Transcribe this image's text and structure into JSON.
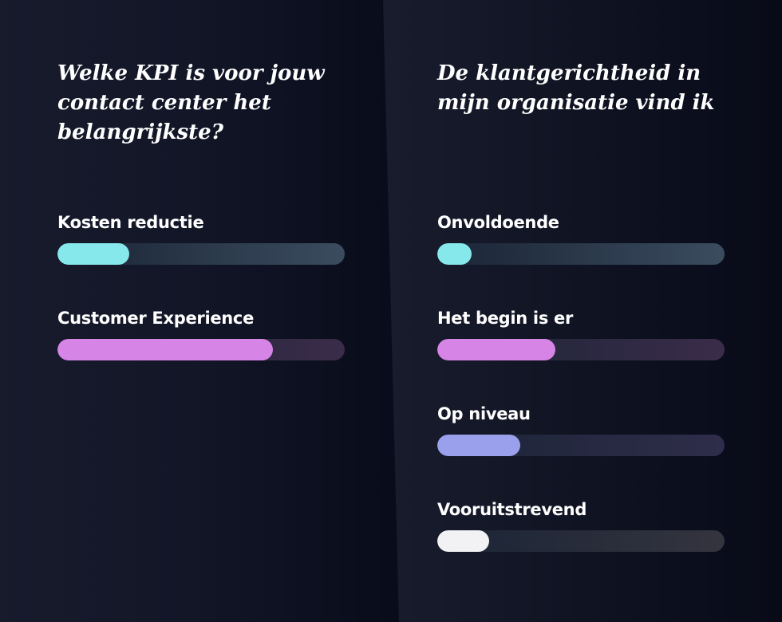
{
  "chart_data": [
    {
      "type": "bar",
      "orientation": "horizontal",
      "title": "Welke KPI is voor jouw contact center het belangrijkste?",
      "categories": [
        "Kosten reductie",
        "Customer Experience"
      ],
      "values": [
        25,
        75
      ],
      "value_unit": "%",
      "xlim": [
        0,
        100
      ],
      "grid": false,
      "legend": "none",
      "colors": [
        "#86e8ea",
        "#d684e6"
      ],
      "track_colors": [
        "#3a4c5e",
        "#3a2c4a"
      ]
    },
    {
      "type": "bar",
      "orientation": "horizontal",
      "title": "De klantgerichtheid in mijn organisatie vind ik",
      "categories": [
        "Onvoldoende",
        "Het begin is er",
        "Op niveau",
        "Vooruitstrevend"
      ],
      "values": [
        12,
        41,
        29,
        18
      ],
      "value_unit": "%",
      "xlim": [
        0,
        100
      ],
      "grid": false,
      "legend": "none",
      "colors": [
        "#86e8ea",
        "#d684e6",
        "#9aa0ec",
        "#f2f2f4"
      ],
      "track_colors": [
        "#3a4c5e",
        "#3a2c4a",
        "#2f2d4a",
        "#34343e"
      ]
    }
  ]
}
